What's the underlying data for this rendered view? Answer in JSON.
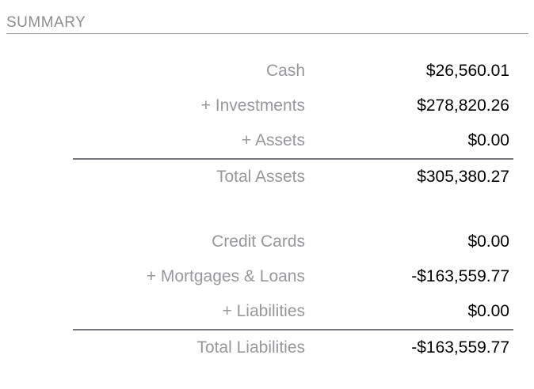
{
  "header": {
    "title": "SUMMARY"
  },
  "colors": {
    "background": "#ffffff",
    "header_text": "#8e8e8e",
    "header_line": "#9b9b9b",
    "label_text": "#97979c",
    "value_text": "#000000",
    "total_divider": "#76767a"
  },
  "summary": {
    "assets": {
      "rows": [
        {
          "label": "Cash",
          "value": "$26,560.01"
        },
        {
          "label": "+ Investments",
          "value": "$278,820.26"
        },
        {
          "label": "+ Assets",
          "value": "$0.00"
        }
      ],
      "total": {
        "label": "Total Assets",
        "value": "$305,380.27"
      }
    },
    "liabilities": {
      "rows": [
        {
          "label": "Credit Cards",
          "value": "$0.00"
        },
        {
          "label": "+ Mortgages & Loans",
          "value": "-$163,559.77"
        },
        {
          "label": "+ Liabilities",
          "value": "$0.00"
        }
      ],
      "total": {
        "label": "Total Liabilities",
        "value": "-$163,559.77"
      }
    }
  }
}
